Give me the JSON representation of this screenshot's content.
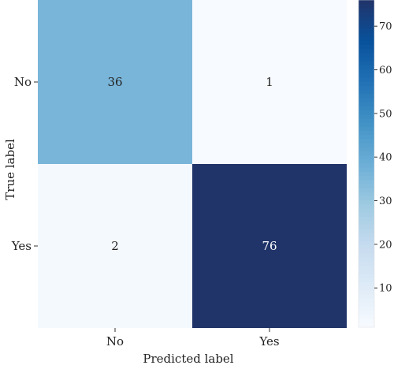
{
  "chart_data": {
    "type": "heatmap",
    "title": "",
    "xlabel": "Predicted label",
    "ylabel": "True label",
    "x_categories": [
      "No",
      "Yes"
    ],
    "y_categories": [
      "No",
      "Yes"
    ],
    "values": [
      [
        36,
        1
      ],
      [
        2,
        76
      ]
    ],
    "cell_labels": [
      [
        "36",
        "1"
      ],
      [
        "2",
        "76"
      ]
    ],
    "colormap": "Blues",
    "colorbar": {
      "vmin": 1,
      "vmax": 76,
      "ticks": [
        10,
        20,
        30,
        40,
        50,
        60,
        70
      ],
      "tick_labels": [
        "10",
        "20",
        "30",
        "40",
        "50",
        "60",
        "70"
      ]
    },
    "grid": false,
    "legend": "colorbar-right"
  }
}
